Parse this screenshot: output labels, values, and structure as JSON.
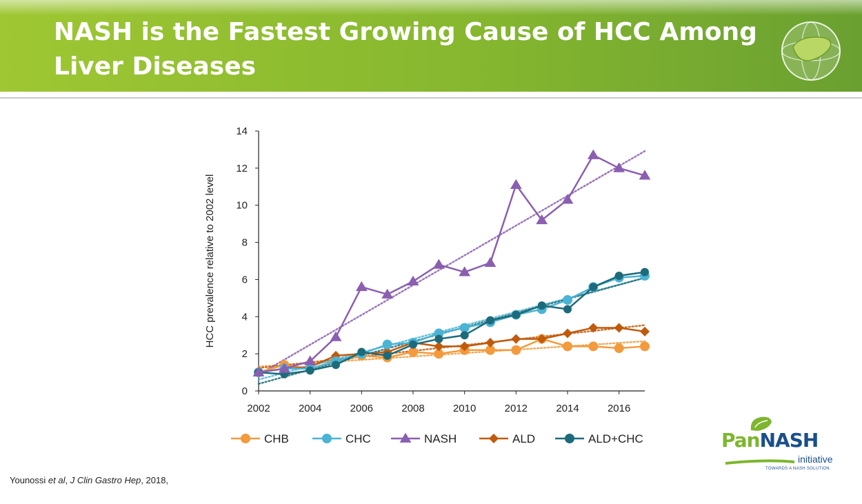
{
  "header": {
    "title": "NASH is the Fastest Growing Cause of HCC Among Liver Diseases",
    "logo_icon": "liver-globe-icon"
  },
  "colors": {
    "header_green": "#8cbc2f",
    "CHB": "#f39a3c",
    "CHC": "#4bb3d4",
    "NASH": "#8a5fb0",
    "ALD": "#c05a0c",
    "ALD+CHC": "#1d6b7a"
  },
  "citation": {
    "author": "Younossi ",
    "etal": "et al",
    "sep": ", ",
    "journal": "J Clin Gastro Hep",
    "year": ", 2018,"
  },
  "brand": {
    "name_part1": "Pan",
    "name_part2": "NASH",
    "subtitle": "initiative",
    "tagline": "TOWARDS A NASH SOLUTION"
  },
  "chart_data": {
    "type": "line",
    "ylabel": "HCC prevalence relative to 2002 level",
    "xlabel": "",
    "ylim": [
      0,
      14
    ],
    "xlim": [
      2002,
      2017
    ],
    "yticks": [
      0,
      2,
      4,
      6,
      8,
      10,
      12,
      14
    ],
    "xticks": [
      2002,
      2004,
      2006,
      2008,
      2010,
      2012,
      2014,
      2016
    ],
    "legend_position": "bottom",
    "trendlines": true,
    "x": [
      2002,
      2003,
      2004,
      2005,
      2006,
      2007,
      2008,
      2009,
      2010,
      2011,
      2012,
      2013,
      2014,
      2015,
      2016,
      2017
    ],
    "series": [
      {
        "name": "CHB",
        "marker": "circle",
        "values": [
          1.0,
          1.4,
          1.2,
          1.6,
          1.9,
          1.8,
          2.1,
          2.0,
          2.2,
          2.2,
          2.2,
          2.8,
          2.4,
          2.4,
          2.3,
          2.4
        ]
      },
      {
        "name": "CHC",
        "marker": "circle",
        "values": [
          1.0,
          1.2,
          1.2,
          1.6,
          2.0,
          2.5,
          2.6,
          3.1,
          3.4,
          3.7,
          4.1,
          4.4,
          4.9,
          5.6,
          6.1,
          6.2
        ]
      },
      {
        "name": "NASH",
        "marker": "triangle",
        "values": [
          1.0,
          1.2,
          1.6,
          2.9,
          5.6,
          5.2,
          5.9,
          6.8,
          6.4,
          6.9,
          11.1,
          9.2,
          10.3,
          12.7,
          12.0,
          11.6
        ]
      },
      {
        "name": "ALD",
        "marker": "diamond",
        "values": [
          1.0,
          1.2,
          1.3,
          1.9,
          2.0,
          2.1,
          2.6,
          2.4,
          2.4,
          2.6,
          2.8,
          2.8,
          3.1,
          3.4,
          3.4,
          3.2
        ]
      },
      {
        "name": "ALD+CHC",
        "marker": "circle",
        "values": [
          1.0,
          0.9,
          1.1,
          1.4,
          2.1,
          1.9,
          2.5,
          2.8,
          3.0,
          3.8,
          4.1,
          4.6,
          4.4,
          5.6,
          6.2,
          6.4
        ]
      }
    ]
  }
}
